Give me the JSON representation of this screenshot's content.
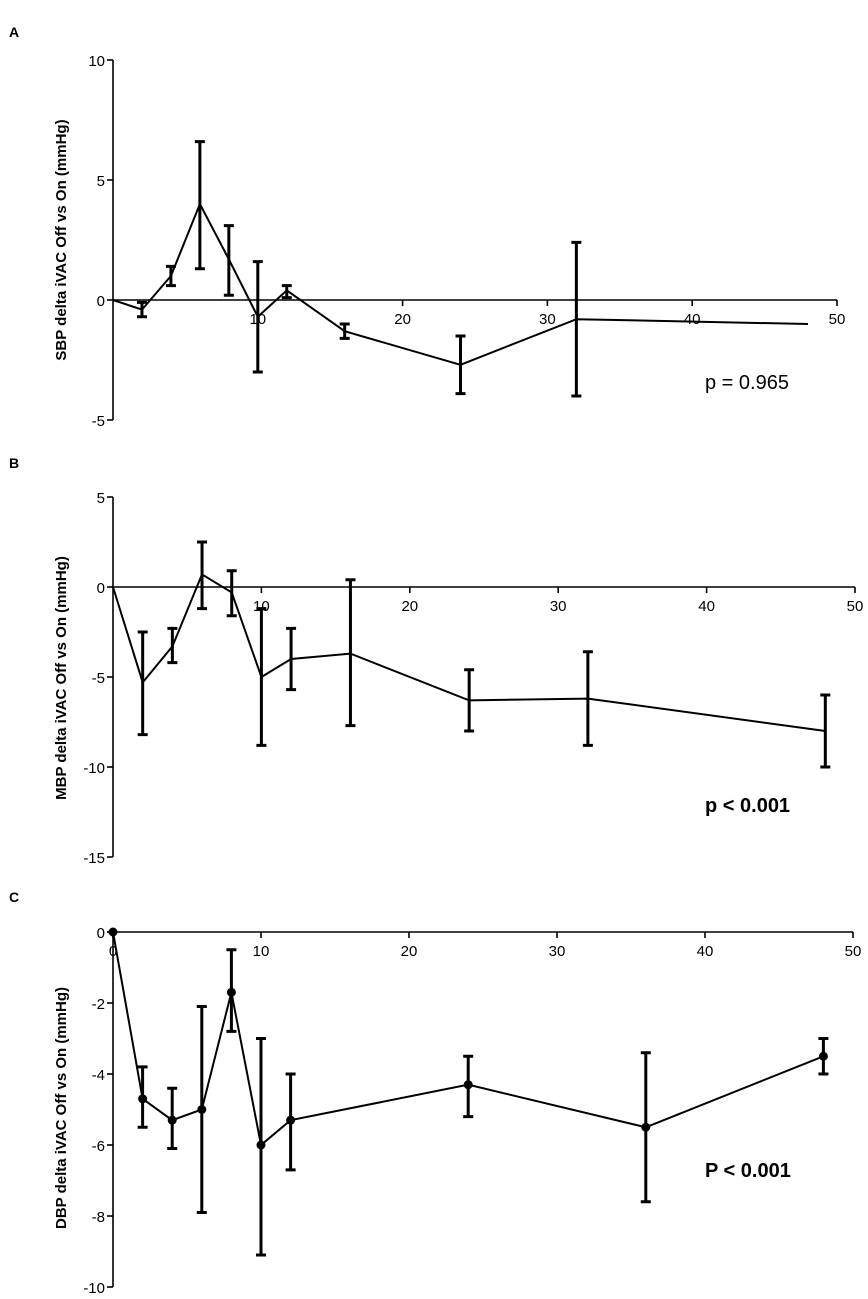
{
  "chart_data": [
    {
      "panel": "A",
      "type": "line",
      "ylabel": "SBP delta iVAC Off vs On (mmHg)",
      "xlim": [
        0,
        50
      ],
      "ylim": [
        -5,
        10
      ],
      "xticks": [
        10,
        20,
        30,
        40,
        50
      ],
      "yticks": [
        -5,
        0,
        5,
        10
      ],
      "annotation": "p = 0.965",
      "annotation_bold": false,
      "markers": false,
      "series": [
        {
          "name": "SBP",
          "x": [
            0,
            2,
            4,
            6,
            8,
            10,
            12,
            16,
            24,
            32,
            48
          ],
          "y": [
            0,
            -0.4,
            1.0,
            4.0,
            1.7,
            -0.7,
            0.4,
            -1.3,
            -2.7,
            -0.8,
            -1.0
          ],
          "err_low": [
            null,
            -0.7,
            0.6,
            1.3,
            0.2,
            -3.0,
            0.1,
            -1.6,
            -3.9,
            -4.0,
            null
          ],
          "err_high": [
            null,
            -0.1,
            1.4,
            6.6,
            3.1,
            1.6,
            0.6,
            -1.0,
            -1.5,
            2.4,
            null
          ]
        }
      ]
    },
    {
      "panel": "B",
      "type": "line",
      "ylabel": "MBP delta iVAC Off vs On (mmHg)",
      "xlim": [
        0,
        50
      ],
      "ylim": [
        -15,
        5
      ],
      "xticks": [
        10,
        20,
        30,
        40,
        50
      ],
      "yticks": [
        -15,
        -10,
        -5,
        0,
        5
      ],
      "annotation": "p < 0.001",
      "annotation_bold": true,
      "markers": false,
      "series": [
        {
          "name": "MBP",
          "x": [
            0,
            2,
            4,
            6,
            8,
            10,
            12,
            16,
            24,
            32,
            48
          ],
          "y": [
            0,
            -5.3,
            -3.3,
            0.7,
            -0.3,
            -5.0,
            -4.0,
            -3.7,
            -6.3,
            -6.2,
            -8.0
          ],
          "err_low": [
            null,
            -8.2,
            -4.2,
            -1.2,
            -1.6,
            -8.8,
            -5.7,
            -7.7,
            -8.0,
            -8.8,
            -10.0
          ],
          "err_high": [
            null,
            -2.5,
            -2.3,
            2.5,
            0.9,
            -1.2,
            -2.3,
            0.4,
            -4.6,
            -3.6,
            -6.0
          ]
        }
      ]
    },
    {
      "panel": "C",
      "type": "line",
      "ylabel": "DBP delta iVAC Off vs On (mmHg)",
      "xlim": [
        0,
        50
      ],
      "ylim": [
        -10,
        0
      ],
      "xticks": [
        0,
        10,
        20,
        30,
        40,
        50
      ],
      "yticks": [
        -10,
        -8,
        -6,
        -4,
        -2,
        0
      ],
      "annotation": "P < 0.001",
      "annotation_bold": true,
      "markers": true,
      "series": [
        {
          "name": "DBP",
          "x": [
            0,
            2,
            4,
            6,
            8,
            10,
            12,
            24,
            36,
            48
          ],
          "y": [
            0,
            -4.7,
            -5.3,
            -5.0,
            -1.7,
            -6.0,
            -5.3,
            -4.3,
            -5.5,
            -3.5
          ],
          "err_low": [
            null,
            -5.5,
            -6.1,
            -7.9,
            -2.8,
            -9.1,
            -6.7,
            -5.2,
            -7.6,
            -4.0
          ],
          "err_high": [
            null,
            -3.8,
            -4.4,
            -2.1,
            -0.5,
            -3.0,
            -4.0,
            -3.5,
            -3.4,
            -3.0
          ]
        }
      ]
    }
  ]
}
